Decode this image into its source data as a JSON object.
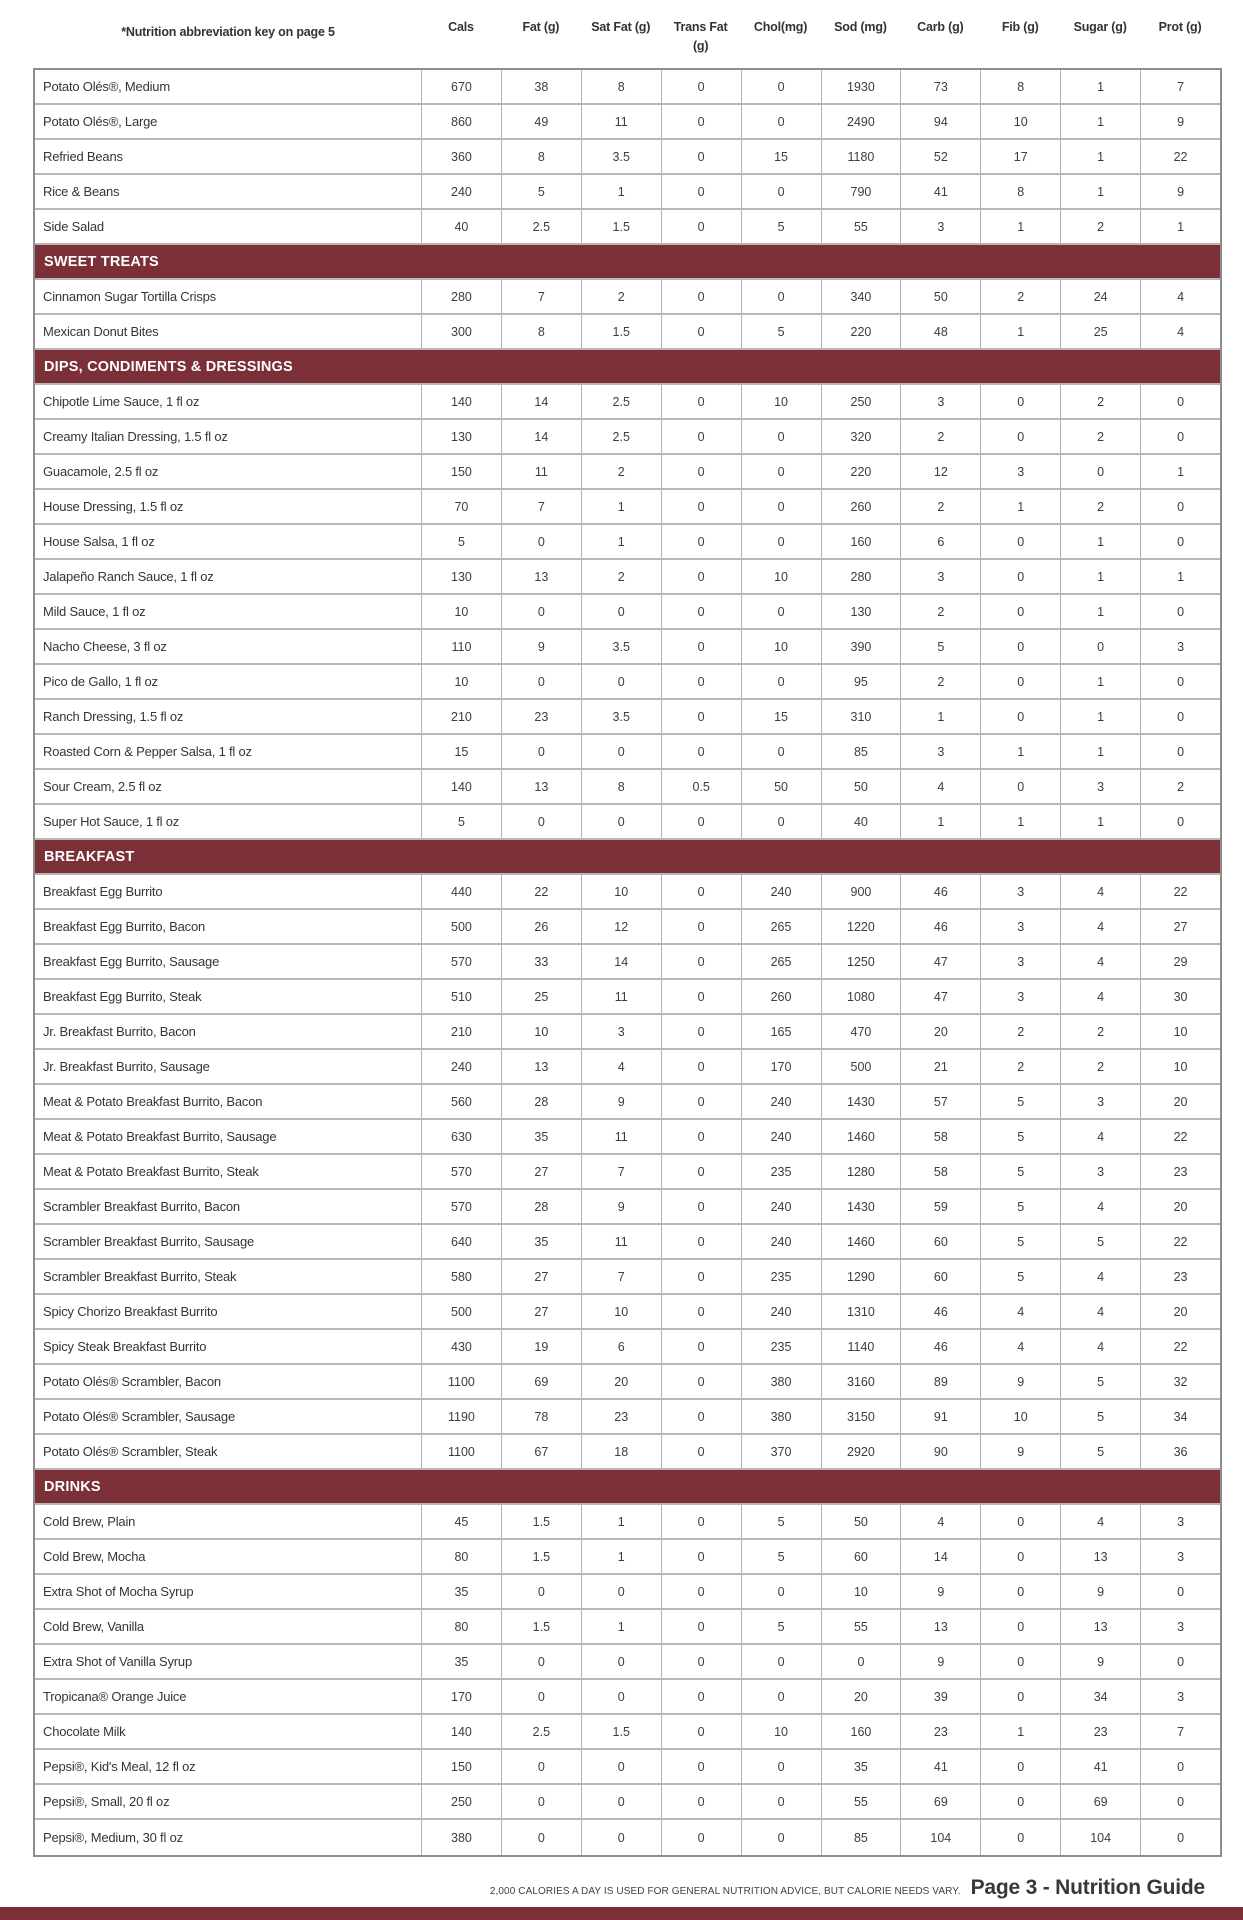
{
  "page": {
    "key_note": "*Nutrition abbreviation key on page 5",
    "columns": [
      "Cals",
      "Fat (g)",
      "Sat Fat (g)",
      "Trans Fat (g)",
      "Chol(mg)",
      "Sod (mg)",
      "Carb (g)",
      "Fib (g)",
      "Sugar (g)",
      "Prot (g)"
    ]
  },
  "colors": {
    "accent_maroon": "#7B3038"
  },
  "table_data": {
    "type": "table",
    "sections": [
      {
        "label": null,
        "rows": [
          [
            "Potato Olés®, Medium",
            "670",
            "38",
            "8",
            "0",
            "0",
            "1930",
            "73",
            "8",
            "1",
            "7"
          ],
          [
            "Potato Olés®, Large",
            "860",
            "49",
            "11",
            "0",
            "0",
            "2490",
            "94",
            "10",
            "1",
            "9"
          ],
          [
            "Refried Beans",
            "360",
            "8",
            "3.5",
            "0",
            "15",
            "1180",
            "52",
            "17",
            "1",
            "22"
          ],
          [
            "Rice & Beans",
            "240",
            "5",
            "1",
            "0",
            "0",
            "790",
            "41",
            "8",
            "1",
            "9"
          ],
          [
            "Side Salad",
            "40",
            "2.5",
            "1.5",
            "0",
            "5",
            "55",
            "3",
            "1",
            "2",
            "1"
          ]
        ]
      },
      {
        "label": "SWEET TREATS",
        "rows": [
          [
            "Cinnamon Sugar Tortilla Crisps",
            "280",
            "7",
            "2",
            "0",
            "0",
            "340",
            "50",
            "2",
            "24",
            "4"
          ],
          [
            "Mexican Donut Bites",
            "300",
            "8",
            "1.5",
            "0",
            "5",
            "220",
            "48",
            "1",
            "25",
            "4"
          ]
        ]
      },
      {
        "label": "DIPS, CONDIMENTS & DRESSINGS",
        "rows": [
          [
            "Chipotle Lime Sauce, 1 fl oz",
            "140",
            "14",
            "2.5",
            "0",
            "10",
            "250",
            "3",
            "0",
            "2",
            "0"
          ],
          [
            "Creamy Italian Dressing, 1.5 fl oz",
            "130",
            "14",
            "2.5",
            "0",
            "0",
            "320",
            "2",
            "0",
            "2",
            "0"
          ],
          [
            "Guacamole, 2.5 fl oz",
            "150",
            "11",
            "2",
            "0",
            "0",
            "220",
            "12",
            "3",
            "0",
            "1"
          ],
          [
            "House Dressing, 1.5 fl oz",
            "70",
            "7",
            "1",
            "0",
            "0",
            "260",
            "2",
            "1",
            "2",
            "0"
          ],
          [
            "House Salsa, 1 fl oz",
            "5",
            "0",
            "1",
            "0",
            "0",
            "160",
            "6",
            "0",
            "1",
            "0"
          ],
          [
            "Jalapeño Ranch Sauce, 1 fl oz",
            "130",
            "13",
            "2",
            "0",
            "10",
            "280",
            "3",
            "0",
            "1",
            "1"
          ],
          [
            "Mild Sauce, 1 fl oz",
            "10",
            "0",
            "0",
            "0",
            "0",
            "130",
            "2",
            "0",
            "1",
            "0"
          ],
          [
            "Nacho Cheese, 3 fl oz",
            "110",
            "9",
            "3.5",
            "0",
            "10",
            "390",
            "5",
            "0",
            "0",
            "3"
          ],
          [
            "Pico de Gallo, 1 fl oz",
            "10",
            "0",
            "0",
            "0",
            "0",
            "95",
            "2",
            "0",
            "1",
            "0"
          ],
          [
            "Ranch Dressing, 1.5 fl oz",
            "210",
            "23",
            "3.5",
            "0",
            "15",
            "310",
            "1",
            "0",
            "1",
            "0"
          ],
          [
            "Roasted Corn & Pepper Salsa, 1 fl oz",
            "15",
            "0",
            "0",
            "0",
            "0",
            "85",
            "3",
            "1",
            "1",
            "0"
          ],
          [
            "Sour Cream, 2.5 fl oz",
            "140",
            "13",
            "8",
            "0.5",
            "50",
            "50",
            "4",
            "0",
            "3",
            "2"
          ],
          [
            "Super Hot Sauce, 1 fl oz",
            "5",
            "0",
            "0",
            "0",
            "0",
            "40",
            "1",
            "1",
            "1",
            "0"
          ]
        ]
      },
      {
        "label": "BREAKFAST",
        "rows": [
          [
            "Breakfast Egg Burrito",
            "440",
            "22",
            "10",
            "0",
            "240",
            "900",
            "46",
            "3",
            "4",
            "22"
          ],
          [
            "Breakfast Egg Burrito, Bacon",
            "500",
            "26",
            "12",
            "0",
            "265",
            "1220",
            "46",
            "3",
            "4",
            "27"
          ],
          [
            "Breakfast Egg Burrito, Sausage",
            "570",
            "33",
            "14",
            "0",
            "265",
            "1250",
            "47",
            "3",
            "4",
            "29"
          ],
          [
            "Breakfast Egg Burrito, Steak",
            "510",
            "25",
            "11",
            "0",
            "260",
            "1080",
            "47",
            "3",
            "4",
            "30"
          ],
          [
            "Jr. Breakfast Burrito, Bacon",
            "210",
            "10",
            "3",
            "0",
            "165",
            "470",
            "20",
            "2",
            "2",
            "10"
          ],
          [
            "Jr. Breakfast Burrito, Sausage",
            "240",
            "13",
            "4",
            "0",
            "170",
            "500",
            "21",
            "2",
            "2",
            "10"
          ],
          [
            "Meat & Potato Breakfast Burrito, Bacon",
            "560",
            "28",
            "9",
            "0",
            "240",
            "1430",
            "57",
            "5",
            "3",
            "20"
          ],
          [
            "Meat & Potato Breakfast Burrito, Sausage",
            "630",
            "35",
            "11",
            "0",
            "240",
            "1460",
            "58",
            "5",
            "4",
            "22"
          ],
          [
            "Meat & Potato Breakfast Burrito, Steak",
            "570",
            "27",
            "7",
            "0",
            "235",
            "1280",
            "58",
            "5",
            "3",
            "23"
          ],
          [
            "Scrambler Breakfast Burrito, Bacon",
            "570",
            "28",
            "9",
            "0",
            "240",
            "1430",
            "59",
            "5",
            "4",
            "20"
          ],
          [
            "Scrambler Breakfast Burrito, Sausage",
            "640",
            "35",
            "11",
            "0",
            "240",
            "1460",
            "60",
            "5",
            "5",
            "22"
          ],
          [
            "Scrambler Breakfast Burrito, Steak",
            "580",
            "27",
            "7",
            "0",
            "235",
            "1290",
            "60",
            "5",
            "4",
            "23"
          ],
          [
            "Spicy Chorizo Breakfast Burrito",
            "500",
            "27",
            "10",
            "0",
            "240",
            "1310",
            "46",
            "4",
            "4",
            "20"
          ],
          [
            "Spicy Steak Breakfast Burrito",
            "430",
            "19",
            "6",
            "0",
            "235",
            "1140",
            "46",
            "4",
            "4",
            "22"
          ],
          [
            "Potato Olés® Scrambler, Bacon",
            "1100",
            "69",
            "20",
            "0",
            "380",
            "3160",
            "89",
            "9",
            "5",
            "32"
          ],
          [
            "Potato Olés® Scrambler, Sausage",
            "1190",
            "78",
            "23",
            "0",
            "380",
            "3150",
            "91",
            "10",
            "5",
            "34"
          ],
          [
            "Potato Olés® Scrambler, Steak",
            "1100",
            "67",
            "18",
            "0",
            "370",
            "2920",
            "90",
            "9",
            "5",
            "36"
          ]
        ]
      },
      {
        "label": "DRINKS",
        "rows": [
          [
            "Cold Brew, Plain",
            "45",
            "1.5",
            "1",
            "0",
            "5",
            "50",
            "4",
            "0",
            "4",
            "3"
          ],
          [
            "Cold Brew, Mocha",
            "80",
            "1.5",
            "1",
            "0",
            "5",
            "60",
            "14",
            "0",
            "13",
            "3"
          ],
          [
            "Extra Shot of Mocha Syrup",
            "35",
            "0",
            "0",
            "0",
            "0",
            "10",
            "9",
            "0",
            "9",
            "0"
          ],
          [
            "Cold Brew, Vanilla",
            "80",
            "1.5",
            "1",
            "0",
            "5",
            "55",
            "13",
            "0",
            "13",
            "3"
          ],
          [
            "Extra Shot of Vanilla Syrup",
            "35",
            "0",
            "0",
            "0",
            "0",
            "0",
            "9",
            "0",
            "9",
            "0"
          ],
          [
            "Tropicana® Orange Juice",
            "170",
            "0",
            "0",
            "0",
            "0",
            "20",
            "39",
            "0",
            "34",
            "3"
          ],
          [
            "Chocolate Milk",
            "140",
            "2.5",
            "1.5",
            "0",
            "10",
            "160",
            "23",
            "1",
            "23",
            "7"
          ],
          [
            "Pepsi®, Kid's Meal, 12 fl oz",
            "150",
            "0",
            "0",
            "0",
            "0",
            "35",
            "41",
            "0",
            "41",
            "0"
          ],
          [
            "Pepsi®, Small, 20 fl oz",
            "250",
            "0",
            "0",
            "0",
            "0",
            "55",
            "69",
            "0",
            "69",
            "0"
          ],
          [
            "Pepsi®, Medium, 30 fl oz",
            "380",
            "0",
            "0",
            "0",
            "0",
            "85",
            "104",
            "0",
            "104",
            "0"
          ]
        ]
      }
    ]
  },
  "footer": {
    "disclaimer": "2,000 CALORIES A DAY IS USED FOR GENERAL NUTRITION ADVICE, BUT CALORIE NEEDS VARY.",
    "page_label": "Page 3 - Nutrition Guide"
  }
}
